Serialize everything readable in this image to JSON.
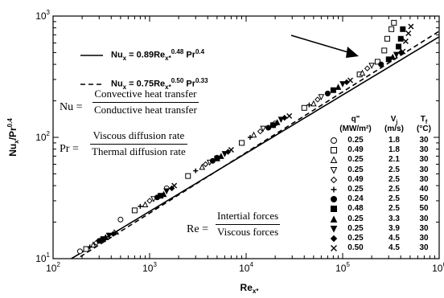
{
  "chart_data": {
    "type": "scatter",
    "xscale": "log",
    "yscale": "log",
    "xlim": [
      100,
      1000000
    ],
    "ylim": [
      10,
      1000
    ],
    "xlabel": "Re",
    "xlabel_sub": "x*",
    "ylabel": "Nu",
    "ylabel_sub": "x",
    "ylabel_den": "/Pr",
    "ylabel_sup": "0.4",
    "x_ticks": [
      {
        "value": 100,
        "base": "10",
        "exp": "2"
      },
      {
        "value": 1000,
        "base": "10",
        "exp": "3"
      },
      {
        "value": 10000,
        "base": "10",
        "exp": "4"
      },
      {
        "value": 100000,
        "base": "10",
        "exp": "5"
      },
      {
        "value": 1000000,
        "base": "10",
        "exp": "6"
      }
    ],
    "y_ticks": [
      {
        "value": 10,
        "base": "10",
        "exp": "1"
      },
      {
        "value": 100,
        "base": "10",
        "exp": "2"
      },
      {
        "value": 1000,
        "base": "10",
        "exp": "3"
      }
    ],
    "correlations": [
      {
        "style": "solid",
        "coef": 0.89,
        "re_exp": 0.48,
        "pr_exp": 0.4,
        "lhs": "Nu",
        "lhs_sub": "x",
        "rhs": "0.89Re",
        "rhs_sub": "x*",
        "rhs_sup": "0.48",
        "pr": "Pr",
        "pr_sup": "0.4"
      },
      {
        "style": "dashed",
        "coef": 0.75,
        "re_exp": 0.5,
        "pr_exp": 0.33,
        "lhs": "Nu",
        "lhs_sub": "x",
        "rhs": "0.75Re",
        "rhs_sub": "x*",
        "rhs_sup": "0.50",
        "pr": "Pr",
        "pr_sup": "0.33"
      }
    ],
    "legend": {
      "placement": "right",
      "headers": [
        {
          "label": "q\"",
          "unit": "(MW/m²)"
        },
        {
          "label": "V",
          "sub": "j",
          "unit": "(m/s)"
        },
        {
          "label": "T",
          "sub": "f",
          "unit": "(°C)"
        }
      ],
      "entries": [
        {
          "marker": "circle-open",
          "q": "0.25",
          "v": "1.8",
          "t": "30"
        },
        {
          "marker": "square-open",
          "q": "0.49",
          "v": "1.8",
          "t": "30"
        },
        {
          "marker": "triangle-open",
          "q": "0.25",
          "v": "2.1",
          "t": "30"
        },
        {
          "marker": "tridown-open",
          "q": "0.25",
          "v": "2.5",
          "t": "30"
        },
        {
          "marker": "diamond-open",
          "q": "0.49",
          "v": "2.5",
          "t": "30"
        },
        {
          "marker": "plus",
          "q": "0.25",
          "v": "2.5",
          "t": "40"
        },
        {
          "marker": "circle-filled",
          "q": "0.24",
          "v": "2.5",
          "t": "50"
        },
        {
          "marker": "square-filled",
          "q": "0.48",
          "v": "2.5",
          "t": "50"
        },
        {
          "marker": "triangle-filled",
          "q": "0.25",
          "v": "3.3",
          "t": "30"
        },
        {
          "marker": "tridown-filled",
          "q": "0.25",
          "v": "3.9",
          "t": "30"
        },
        {
          "marker": "diamond-filled",
          "q": "0.25",
          "v": "4.5",
          "t": "30"
        },
        {
          "marker": "cross",
          "q": "0.50",
          "v": "4.5",
          "t": "30"
        }
      ]
    },
    "series": [
      {
        "marker": "circle-open",
        "points": [
          [
            190,
            11.5
          ],
          [
            500,
            21
          ],
          [
            1500,
            38
          ],
          [
            5000,
            68
          ],
          [
            20000,
            130
          ],
          [
            70000,
            230
          ],
          [
            150000,
            330
          ]
        ]
      },
      {
        "marker": "square-open",
        "points": [
          [
            220,
            12
          ],
          [
            700,
            25
          ],
          [
            2500,
            48
          ],
          [
            9000,
            90
          ],
          [
            40000,
            175
          ],
          [
            150000,
            330
          ],
          [
            230000,
            420
          ],
          [
            270000,
            520
          ],
          [
            290000,
            650
          ],
          [
            320000,
            780
          ],
          [
            340000,
            880
          ]
        ]
      },
      {
        "marker": "triangle-open",
        "points": [
          [
            260,
            13
          ],
          [
            900,
            28
          ],
          [
            3500,
            57
          ],
          [
            12000,
            105
          ],
          [
            50000,
            190
          ],
          [
            160000,
            340
          ]
        ]
      },
      {
        "marker": "tridown-open",
        "points": [
          [
            320,
            14
          ],
          [
            1100,
            31
          ],
          [
            4200,
            62
          ],
          [
            15000,
            118
          ],
          [
            60000,
            215
          ],
          [
            200000,
            390
          ]
        ]
      },
      {
        "marker": "diamond-open",
        "points": [
          [
            280,
            13.5
          ],
          [
            1000,
            30
          ],
          [
            3800,
            60
          ],
          [
            14000,
            112
          ],
          [
            55000,
            205
          ],
          [
            180000,
            370
          ]
        ]
      },
      {
        "marker": "plus",
        "points": [
          [
            240,
            12.5
          ],
          [
            800,
            27
          ],
          [
            3000,
            53
          ],
          [
            11000,
            100
          ],
          [
            45000,
            185
          ]
        ]
      },
      {
        "marker": "circle-filled",
        "points": [
          [
            300,
            14
          ],
          [
            1200,
            32
          ],
          [
            4500,
            64
          ],
          [
            17000,
            120
          ],
          [
            70000,
            230
          ],
          [
            250000,
            400
          ]
        ]
      },
      {
        "marker": "square-filled",
        "points": [
          [
            330,
            14.5
          ],
          [
            1300,
            33
          ],
          [
            5000,
            67
          ],
          [
            19000,
            126
          ],
          [
            80000,
            245
          ],
          [
            300000,
            440
          ],
          [
            380000,
            560
          ],
          [
            400000,
            650
          ],
          [
            420000,
            780
          ]
        ]
      },
      {
        "marker": "triangle-filled",
        "points": [
          [
            350,
            15
          ],
          [
            1400,
            34
          ],
          [
            5500,
            70
          ],
          [
            21000,
            133
          ],
          [
            90000,
            260
          ],
          [
            330000,
            460
          ]
        ]
      },
      {
        "marker": "tridown-filled",
        "points": [
          [
            380,
            15.5
          ],
          [
            1500,
            36
          ],
          [
            6000,
            73
          ],
          [
            23000,
            140
          ],
          [
            100000,
            275
          ],
          [
            360000,
            480
          ]
        ]
      },
      {
        "marker": "diamond-filled",
        "points": [
          [
            420,
            16
          ],
          [
            1700,
            38
          ],
          [
            6500,
            76
          ],
          [
            25000,
            145
          ],
          [
            110000,
            285
          ],
          [
            400000,
            500
          ]
        ]
      },
      {
        "marker": "cross",
        "points": [
          [
            450,
            16.5
          ],
          [
            1800,
            40
          ],
          [
            7000,
            79
          ],
          [
            28000,
            150
          ],
          [
            120000,
            295
          ],
          [
            420000,
            510
          ],
          [
            450000,
            620
          ],
          [
            480000,
            720
          ],
          [
            510000,
            820
          ]
        ]
      }
    ]
  },
  "annotations": {
    "nu": {
      "label": "Nu",
      "eq": "=",
      "num": "Convective heat transfer",
      "den": "Conductive heat transfer"
    },
    "pr": {
      "label": "Pr",
      "eq": "=",
      "num": "Viscous diffusion rate",
      "den": "Thermal diffusion rate"
    },
    "re": {
      "label": "Re",
      "eq": "=",
      "num": "Intertial forces",
      "den": "Viscous forces"
    }
  }
}
